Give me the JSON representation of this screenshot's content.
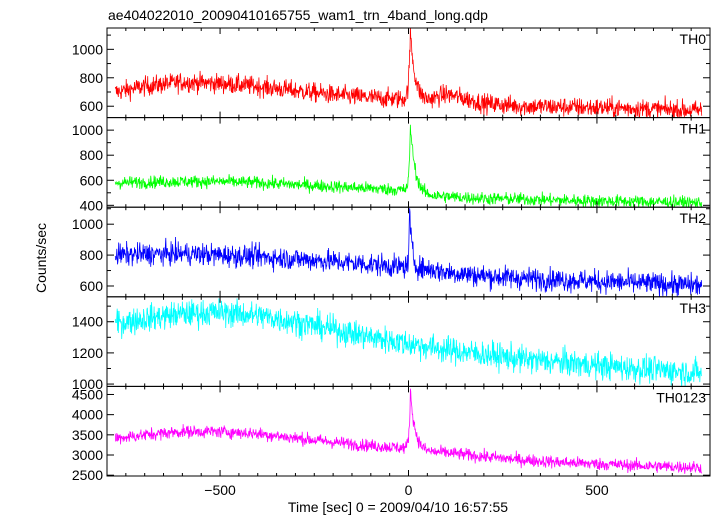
{
  "chart_data": {
    "type": "line",
    "title": "ae404022010_20090410165755_wam1_trn_4band_long.qdp",
    "xlabel": "Time [sec] 0 = 2009/04/10 16:57:55",
    "ylabel": "Counts/sec",
    "xlim": [
      -800,
      800
    ],
    "x_ticks": [
      -500,
      0,
      500
    ],
    "x_tick_labels": [
      "−500",
      "0",
      "500"
    ],
    "grid": false,
    "panels": [
      {
        "name": "TH0",
        "color": "#ff0000",
        "ylim": [
          520,
          1150
        ],
        "y_ticks": [
          600,
          700,
          800,
          900,
          1000,
          1100
        ],
        "y_tick_labels": [
          "600",
          "800",
          "1000"
        ],
        "noise": 75,
        "profile": [
          [
            -775,
            700
          ],
          [
            -700,
            740
          ],
          [
            -600,
            770
          ],
          [
            -500,
            760
          ],
          [
            -400,
            740
          ],
          [
            -300,
            710
          ],
          [
            -200,
            680
          ],
          [
            -100,
            660
          ],
          [
            -20,
            650
          ],
          [
            0,
            645
          ],
          [
            50,
            640
          ],
          [
            100,
            685
          ],
          [
            140,
            660
          ],
          [
            200,
            620
          ],
          [
            300,
            600
          ],
          [
            400,
            595
          ],
          [
            500,
            590
          ],
          [
            600,
            585
          ],
          [
            700,
            575
          ],
          [
            775,
            570
          ]
        ],
        "burst": {
          "t0": 5,
          "peak": 1130,
          "rise": 4,
          "decay": 12
        }
      },
      {
        "name": "TH1",
        "color": "#00ff00",
        "ylim": [
          385,
          1100
        ],
        "y_ticks": [
          400,
          500,
          600,
          700,
          800,
          900,
          1000
        ],
        "y_tick_labels": [
          "400",
          "600",
          "800",
          "1000"
        ],
        "noise": 55,
        "profile": [
          [
            -775,
            580
          ],
          [
            -700,
            585
          ],
          [
            -600,
            590
          ],
          [
            -500,
            590
          ],
          [
            -400,
            580
          ],
          [
            -300,
            565
          ],
          [
            -200,
            550
          ],
          [
            -100,
            535
          ],
          [
            0,
            520
          ],
          [
            50,
            480
          ],
          [
            100,
            470
          ],
          [
            200,
            455
          ],
          [
            300,
            450
          ],
          [
            400,
            440
          ],
          [
            500,
            435
          ],
          [
            600,
            430
          ],
          [
            700,
            425
          ],
          [
            775,
            420
          ]
        ],
        "burst": {
          "t0": 5,
          "peak": 1050,
          "rise": 3,
          "decay": 12
        }
      },
      {
        "name": "TH2",
        "color": "#0000ff",
        "ylim": [
          530,
          1110
        ],
        "y_ticks": [
          600,
          700,
          800,
          900,
          1000,
          1100
        ],
        "y_tick_labels": [
          "600",
          "800",
          "1000"
        ],
        "noise": 80,
        "profile": [
          [
            -775,
            800
          ],
          [
            -700,
            805
          ],
          [
            -600,
            810
          ],
          [
            -500,
            800
          ],
          [
            -400,
            790
          ],
          [
            -300,
            775
          ],
          [
            -200,
            760
          ],
          [
            -100,
            740
          ],
          [
            0,
            720
          ],
          [
            50,
            710
          ],
          [
            100,
            690
          ],
          [
            200,
            665
          ],
          [
            300,
            650
          ],
          [
            400,
            640
          ],
          [
            500,
            630
          ],
          [
            600,
            620
          ],
          [
            700,
            610
          ],
          [
            775,
            605
          ]
        ],
        "burst": {
          "t0": 3,
          "peak": 1100,
          "rise": 2,
          "decay": 6
        }
      },
      {
        "name": "TH3",
        "color": "#00ffff",
        "ylim": [
          985,
          1560
        ],
        "y_ticks": [
          1000,
          1100,
          1200,
          1300,
          1400,
          1500
        ],
        "y_tick_labels": [
          "1000",
          "1200",
          "1400"
        ],
        "noise": 95,
        "profile": [
          [
            -775,
            1390
          ],
          [
            -700,
            1420
          ],
          [
            -600,
            1450
          ],
          [
            -500,
            1460
          ],
          [
            -400,
            1440
          ],
          [
            -300,
            1400
          ],
          [
            -200,
            1350
          ],
          [
            -100,
            1300
          ],
          [
            0,
            1260
          ],
          [
            100,
            1220
          ],
          [
            200,
            1190
          ],
          [
            300,
            1160
          ],
          [
            400,
            1140
          ],
          [
            500,
            1120
          ],
          [
            600,
            1100
          ],
          [
            700,
            1085
          ],
          [
            775,
            1070
          ]
        ],
        "burst": null
      },
      {
        "name": "TH0123",
        "color": "#ff00ff",
        "ylim": [
          2480,
          4700
        ],
        "y_ticks": [
          2500,
          3000,
          3500,
          4000,
          4500
        ],
        "y_tick_labels": [
          "2500",
          "3000",
          "3500",
          "4000",
          "4500"
        ],
        "noise": 170,
        "profile": [
          [
            -775,
            3420
          ],
          [
            -700,
            3500
          ],
          [
            -600,
            3580
          ],
          [
            -500,
            3580
          ],
          [
            -400,
            3530
          ],
          [
            -300,
            3420
          ],
          [
            -200,
            3320
          ],
          [
            -100,
            3230
          ],
          [
            0,
            3170
          ],
          [
            50,
            3080
          ],
          [
            100,
            3060
          ],
          [
            200,
            2960
          ],
          [
            300,
            2880
          ],
          [
            400,
            2820
          ],
          [
            500,
            2780
          ],
          [
            600,
            2740
          ],
          [
            700,
            2710
          ],
          [
            775,
            2690
          ]
        ],
        "burst": {
          "t0": 5,
          "peak": 4600,
          "rise": 3,
          "decay": 12
        }
      }
    ]
  }
}
